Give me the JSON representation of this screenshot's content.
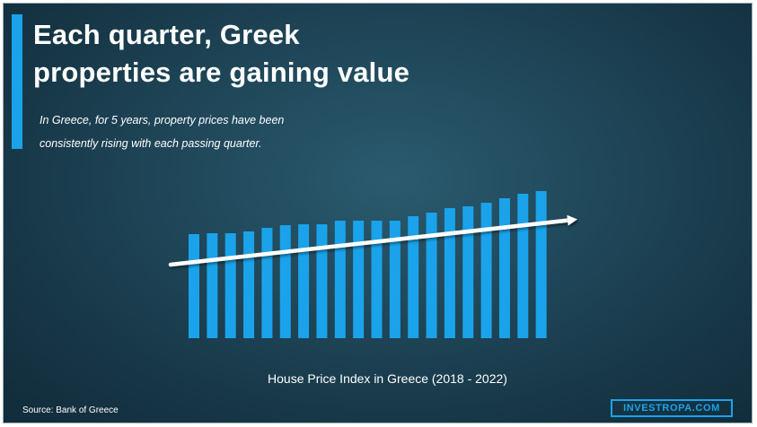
{
  "slide": {
    "title_line1": "Each quarter, Greek",
    "title_line2": "properties are gaining value",
    "subtitle_line1": "In Greece, for 5 years, property prices have been",
    "subtitle_line2": "consistently rising with each passing quarter.",
    "caption": "House Price Index in Greece (2018 - 2022)",
    "source": "Source: Bank of Greece",
    "brand": "INVESTROPA.COM"
  },
  "colors": {
    "background": "#1f4759",
    "accent": "#1aa3ea",
    "bars": "#1aa3ea",
    "trend_arrow": "#ffffff"
  },
  "chart_data": {
    "type": "bar",
    "title": "House Price Index in Greece (2018 - 2022)",
    "xlabel": "",
    "ylabel": "",
    "axes_visible": false,
    "grid": false,
    "legend": "none",
    "values": [
      116,
      117,
      117,
      119,
      123,
      126,
      127,
      127,
      131,
      131,
      131,
      131,
      136,
      140,
      145,
      147,
      151,
      156,
      161,
      164
    ],
    "trend_line": {
      "type": "arrow",
      "start_value": 82,
      "end_value": 132,
      "color": "#ffffff"
    }
  }
}
